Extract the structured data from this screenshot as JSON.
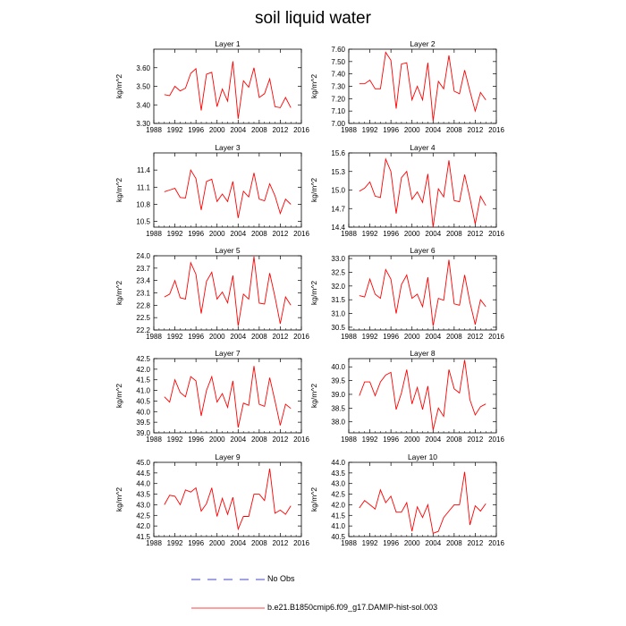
{
  "figure_title": "soil liquid water",
  "legend": [
    {
      "label": "No Obs",
      "color": "#0000ff",
      "style": "dashed"
    },
    {
      "label": "b.e21.B1850cmip6.f09_g17.DAMIP-hist-sol.003",
      "color": "#ff0000",
      "style": "solid"
    }
  ],
  "chart_data": [
    {
      "type": "line",
      "title": "Layer 1",
      "ylabel": "kg/m^2",
      "xlim": [
        1988,
        2016
      ],
      "ylim": [
        3.3,
        3.7
      ],
      "xticks": [
        "1988",
        "1992",
        "1996",
        "2000",
        "2004",
        "2008",
        "2012",
        "2016"
      ],
      "yticks": [
        "3.30",
        "3.40",
        "3.50",
        "3.60"
      ],
      "series": [
        {
          "color": "#ff0000",
          "x": [
            1990,
            1991,
            1992,
            1993,
            1994,
            1995,
            1996,
            1997,
            1998,
            1999,
            2000,
            2001,
            2002,
            2003,
            2004,
            2005,
            2006,
            2007,
            2008,
            2009,
            2010,
            2011,
            2012,
            2013,
            2014
          ],
          "y": [
            3.455,
            3.45,
            3.5,
            3.475,
            3.49,
            3.57,
            3.595,
            3.37,
            3.565,
            3.575,
            3.39,
            3.485,
            3.42,
            3.635,
            3.325,
            3.53,
            3.495,
            3.6,
            3.44,
            3.46,
            3.54,
            3.39,
            3.385,
            3.44,
            3.385
          ]
        }
      ]
    },
    {
      "type": "line",
      "title": "Layer 2",
      "ylabel": "kg/m^2",
      "xlim": [
        1988,
        2016
      ],
      "ylim": [
        7.0,
        7.6
      ],
      "xticks": [
        "1988",
        "1992",
        "1996",
        "2000",
        "2004",
        "2008",
        "2012",
        "2016"
      ],
      "yticks": [
        "7.00",
        "7.10",
        "7.20",
        "7.30",
        "7.40",
        "7.50",
        "7.60"
      ],
      "series": [
        {
          "color": "#ff0000",
          "x": [
            1990,
            1991,
            1992,
            1993,
            1994,
            1995,
            1996,
            1997,
            1998,
            1999,
            2000,
            2001,
            2002,
            2003,
            2004,
            2005,
            2006,
            2007,
            2008,
            2009,
            2010,
            2011,
            2012,
            2013,
            2014
          ],
          "y": [
            7.32,
            7.32,
            7.35,
            7.28,
            7.28,
            7.575,
            7.51,
            7.12,
            7.48,
            7.49,
            7.19,
            7.3,
            7.19,
            7.49,
            7.02,
            7.34,
            7.28,
            7.55,
            7.26,
            7.24,
            7.43,
            7.26,
            7.1,
            7.25,
            7.19
          ]
        }
      ]
    },
    {
      "type": "line",
      "title": "Layer 3",
      "ylabel": "kg/m^2",
      "xlim": [
        1988,
        2016
      ],
      "ylim": [
        10.4,
        11.7
      ],
      "xticks": [
        "1988",
        "1992",
        "1996",
        "2000",
        "2004",
        "2008",
        "2012",
        "2016"
      ],
      "yticks": [
        "10.5",
        "10.8",
        "11.1",
        "11.4"
      ],
      "series": [
        {
          "color": "#ff0000",
          "x": [
            1990,
            1991,
            1992,
            1993,
            1994,
            1995,
            1996,
            1997,
            1998,
            1999,
            2000,
            2001,
            2002,
            2003,
            2004,
            2005,
            2006,
            2007,
            2008,
            2009,
            2010,
            2011,
            2012,
            2013,
            2014
          ],
          "y": [
            11.02,
            11.05,
            11.08,
            10.92,
            10.91,
            11.4,
            11.25,
            10.7,
            11.2,
            11.24,
            10.85,
            10.98,
            10.85,
            11.2,
            10.56,
            11.03,
            10.93,
            11.35,
            10.89,
            10.86,
            11.16,
            10.95,
            10.64,
            10.89,
            10.8
          ]
        }
      ]
    },
    {
      "type": "line",
      "title": "Layer 4",
      "ylabel": "kg/m^2",
      "xlim": [
        1988,
        2016
      ],
      "ylim": [
        14.4,
        15.6
      ],
      "xticks": [
        "1988",
        "1992",
        "1996",
        "2000",
        "2004",
        "2008",
        "2012",
        "2016"
      ],
      "yticks": [
        "14.4",
        "14.7",
        "15.0",
        "15.3",
        "15.6"
      ],
      "series": [
        {
          "color": "#ff0000",
          "x": [
            1990,
            1991,
            1992,
            1993,
            1994,
            1995,
            1996,
            1997,
            1998,
            1999,
            2000,
            2001,
            2002,
            2003,
            2004,
            2005,
            2006,
            2007,
            2008,
            2009,
            2010,
            2011,
            2012,
            2013,
            2014
          ],
          "y": [
            14.98,
            15.03,
            15.13,
            14.9,
            14.88,
            15.5,
            15.3,
            14.62,
            15.2,
            15.3,
            14.85,
            14.97,
            14.8,
            15.26,
            14.4,
            15.02,
            14.89,
            15.48,
            14.83,
            14.81,
            15.25,
            14.87,
            14.45,
            14.9,
            14.75
          ]
        }
      ]
    },
    {
      "type": "line",
      "title": "Layer 5",
      "ylabel": "kg/m^2",
      "xlim": [
        1988,
        2016
      ],
      "ylim": [
        22.2,
        24.0
      ],
      "xticks": [
        "1988",
        "1992",
        "1996",
        "2000",
        "2004",
        "2008",
        "2012",
        "2016"
      ],
      "yticks": [
        "22.2",
        "22.5",
        "22.8",
        "23.1",
        "23.4",
        "23.7",
        "24.0"
      ],
      "series": [
        {
          "color": "#ff0000",
          "x": [
            1990,
            1991,
            1992,
            1993,
            1994,
            1995,
            1996,
            1997,
            1998,
            1999,
            2000,
            2001,
            2002,
            2003,
            2004,
            2005,
            2006,
            2007,
            2008,
            2009,
            2010,
            2011,
            2012,
            2013,
            2014
          ],
          "y": [
            23.0,
            23.07,
            23.4,
            22.98,
            22.95,
            23.83,
            23.55,
            22.6,
            23.38,
            23.6,
            22.95,
            23.12,
            22.86,
            23.52,
            22.3,
            23.07,
            22.95,
            23.98,
            22.85,
            22.83,
            23.58,
            23.0,
            22.35,
            23.0,
            22.8
          ]
        }
      ]
    },
    {
      "type": "line",
      "title": "Layer 6",
      "ylabel": "kg/m^2",
      "xlim": [
        1988,
        2016
      ],
      "ylim": [
        30.4,
        33.1
      ],
      "xticks": [
        "1988",
        "1992",
        "1996",
        "2000",
        "2004",
        "2008",
        "2012",
        "2016"
      ],
      "yticks": [
        "30.5",
        "31.0",
        "31.5",
        "32.0",
        "32.5",
        "33.0"
      ],
      "series": [
        {
          "color": "#ff0000",
          "x": [
            1990,
            1991,
            1992,
            1993,
            1994,
            1995,
            1996,
            1997,
            1998,
            1999,
            2000,
            2001,
            2002,
            2003,
            2004,
            2005,
            2006,
            2007,
            2008,
            2009,
            2010,
            2011,
            2012,
            2013,
            2014
          ],
          "y": [
            31.65,
            31.6,
            32.25,
            31.7,
            31.55,
            32.6,
            32.25,
            31.0,
            32.05,
            32.4,
            31.55,
            31.7,
            31.25,
            32.32,
            30.55,
            31.55,
            31.48,
            32.95,
            31.35,
            31.3,
            32.4,
            31.4,
            30.6,
            31.5,
            31.25
          ]
        }
      ]
    },
    {
      "type": "line",
      "title": "Layer 7",
      "ylabel": "kg/m^2",
      "xlim": [
        1988,
        2016
      ],
      "ylim": [
        39.0,
        42.5
      ],
      "xticks": [
        "1988",
        "1992",
        "1996",
        "2000",
        "2004",
        "2008",
        "2012",
        "2016"
      ],
      "yticks": [
        "39.0",
        "39.5",
        "40.0",
        "40.5",
        "41.0",
        "41.5",
        "42.0",
        "42.5"
      ],
      "series": [
        {
          "color": "#ff0000",
          "x": [
            1990,
            1991,
            1992,
            1993,
            1994,
            1995,
            1996,
            1997,
            1998,
            1999,
            2000,
            2001,
            2002,
            2003,
            2004,
            2005,
            2006,
            2007,
            2008,
            2009,
            2010,
            2011,
            2012,
            2013,
            2014
          ],
          "y": [
            40.7,
            40.45,
            41.5,
            40.9,
            40.7,
            41.65,
            41.45,
            39.8,
            41.0,
            41.65,
            40.45,
            40.85,
            40.2,
            41.45,
            39.25,
            40.4,
            40.3,
            42.15,
            40.35,
            40.25,
            41.6,
            40.5,
            39.35,
            40.35,
            40.15
          ]
        }
      ]
    },
    {
      "type": "line",
      "title": "Layer 8",
      "ylabel": "kg/m^2",
      "xlim": [
        1988,
        2016
      ],
      "ylim": [
        37.6,
        40.3
      ],
      "xticks": [
        "1988",
        "1992",
        "1996",
        "2000",
        "2004",
        "2008",
        "2012",
        "2016"
      ],
      "yticks": [
        "38.0",
        "38.5",
        "39.0",
        "39.5",
        "40.0"
      ],
      "series": [
        {
          "color": "#ff0000",
          "x": [
            1990,
            1991,
            1992,
            1993,
            1994,
            1995,
            1996,
            1997,
            1998,
            1999,
            2000,
            2001,
            2002,
            2003,
            2004,
            2005,
            2006,
            2007,
            2008,
            2009,
            2010,
            2011,
            2012,
            2013,
            2014
          ],
          "y": [
            38.95,
            39.45,
            39.45,
            38.95,
            39.45,
            39.7,
            39.8,
            38.45,
            39.05,
            39.9,
            38.65,
            39.25,
            38.45,
            39.3,
            37.7,
            38.5,
            38.2,
            39.9,
            39.2,
            39.05,
            40.25,
            38.8,
            38.25,
            38.55,
            38.65
          ]
        }
      ]
    },
    {
      "type": "line",
      "title": "Layer 9",
      "ylabel": "kg/m^2",
      "xlim": [
        1988,
        2016
      ],
      "ylim": [
        41.5,
        45.0
      ],
      "xticks": [
        "1988",
        "1992",
        "1996",
        "2000",
        "2004",
        "2008",
        "2012",
        "2016"
      ],
      "yticks": [
        "41.5",
        "42.0",
        "42.5",
        "43.0",
        "43.5",
        "44.0",
        "44.5",
        "45.0"
      ],
      "series": [
        {
          "color": "#ff0000",
          "x": [
            1990,
            1991,
            1992,
            1993,
            1994,
            1995,
            1996,
            1997,
            1998,
            1999,
            2000,
            2001,
            2002,
            2003,
            2004,
            2005,
            2006,
            2007,
            2008,
            2009,
            2010,
            2011,
            2012,
            2013,
            2014
          ],
          "y": [
            43.0,
            43.45,
            43.4,
            43.0,
            43.7,
            43.6,
            43.8,
            42.7,
            43.05,
            43.8,
            42.45,
            43.3,
            42.55,
            43.35,
            41.85,
            42.45,
            42.45,
            43.5,
            43.5,
            43.2,
            44.7,
            42.6,
            42.75,
            42.55,
            42.95
          ]
        }
      ]
    },
    {
      "type": "line",
      "title": "Layer 10",
      "ylabel": "kg/m^2",
      "xlim": [
        1988,
        2016
      ],
      "ylim": [
        40.5,
        44.0
      ],
      "xticks": [
        "1988",
        "1992",
        "1996",
        "2000",
        "2004",
        "2008",
        "2012",
        "2016"
      ],
      "yticks": [
        "40.5",
        "41.0",
        "41.5",
        "42.0",
        "42.5",
        "43.0",
        "43.5",
        "44.0"
      ],
      "series": [
        {
          "color": "#ff0000",
          "x": [
            1990,
            1991,
            1992,
            1993,
            1994,
            1995,
            1996,
            1997,
            1998,
            1999,
            2000,
            2001,
            2002,
            2003,
            2004,
            2005,
            2006,
            2007,
            2008,
            2009,
            2010,
            2011,
            2012,
            2013,
            2014
          ],
          "y": [
            41.85,
            42.2,
            42.0,
            41.8,
            42.7,
            42.1,
            42.4,
            41.65,
            41.65,
            42.1,
            40.75,
            41.9,
            41.4,
            42.0,
            40.65,
            40.75,
            41.4,
            41.7,
            42.0,
            42.0,
            43.55,
            41.05,
            41.95,
            41.7,
            42.05
          ]
        }
      ]
    }
  ]
}
